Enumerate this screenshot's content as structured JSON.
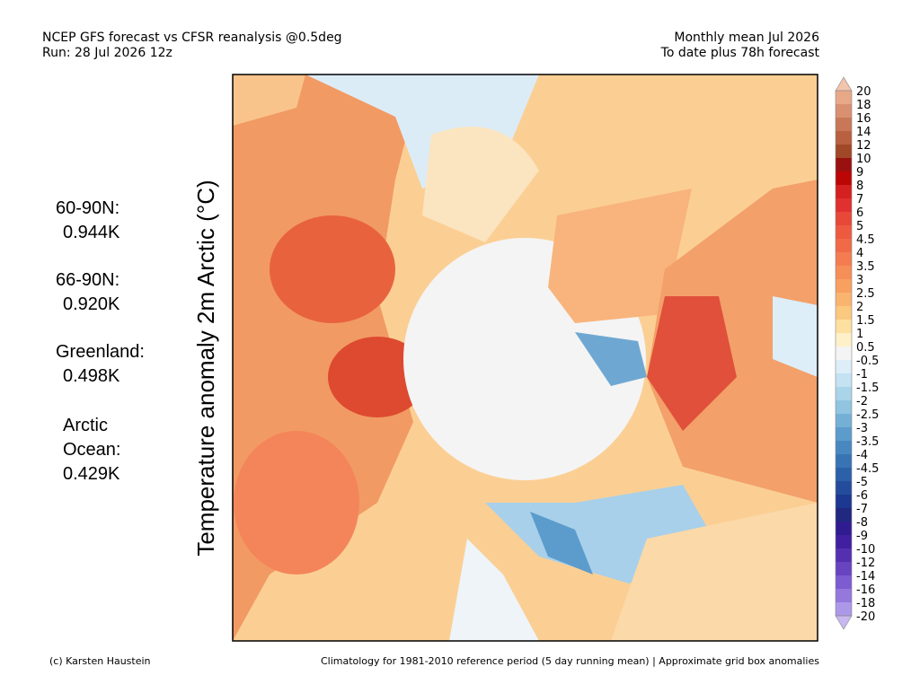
{
  "header": {
    "title_left": "NCEP GFS forecast vs CFSR reanalysis @0.5deg",
    "run": "Run: 28 Jul 2026 12z",
    "title_right": "Monthly mean Jul 2026",
    "subtitle_right": "To date plus 78h forecast"
  },
  "axis_label": "Temperature anomaly 2m Arctic (°C)",
  "stats": [
    {
      "label": [
        "60-90N:"
      ],
      "value": "0.944K"
    },
    {
      "label": [
        "66-90N:"
      ],
      "value": "0.920K"
    },
    {
      "label": [
        "Greenland:"
      ],
      "value": "0.498K"
    },
    {
      "label": [
        "Arctic",
        "Ocean:"
      ],
      "value": "0.429K"
    }
  ],
  "colorbar": {
    "labels": [
      20,
      18,
      16,
      14,
      12,
      10,
      9,
      8,
      7,
      6,
      5,
      4.5,
      4,
      3.5,
      3,
      2.5,
      2,
      1.5,
      1,
      0.5,
      -0.5,
      -1,
      -1.5,
      -2,
      -2.5,
      -3,
      -3.5,
      -4,
      -4.5,
      -5,
      -6,
      -7,
      -8,
      -9,
      -10,
      -12,
      -14,
      -16,
      -18,
      -20
    ],
    "colors": [
      "#f2c4ac",
      "#e8a888",
      "#d89070",
      "#c87858",
      "#b86040",
      "#a04828",
      "#9a1010",
      "#bc0606",
      "#d42020",
      "#e03030",
      "#e84838",
      "#ee5a40",
      "#f06a48",
      "#f47c50",
      "#f68e58",
      "#f8a060",
      "#f9b470",
      "#fbc880",
      "#fde0a0",
      "#fef0c8",
      "#f4f4f4",
      "#ddeef8",
      "#c4e2f2",
      "#aad4ea",
      "#90c4e0",
      "#74b0d6",
      "#5c9ccc",
      "#4888c0",
      "#3874b4",
      "#2c60a8",
      "#244c9c",
      "#1c3890",
      "#202880",
      "#301c90",
      "#4020a0",
      "#5430b0",
      "#6844c0",
      "#7c5cd0",
      "#9478dc",
      "#ac98e8",
      "#c8b8f0"
    ]
  },
  "footer": {
    "credit": "(c) Karsten Haustein",
    "note": "Climatology for 1981-2010 reference period (5 day running mean) | Approximate grid box anomalies"
  }
}
